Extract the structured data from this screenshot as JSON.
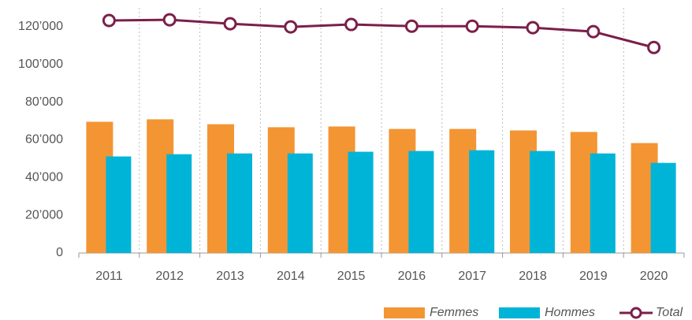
{
  "chart_data": {
    "type": "bar",
    "categories": [
      "2011",
      "2012",
      "2013",
      "2014",
      "2015",
      "2016",
      "2017",
      "2018",
      "2019",
      "2020"
    ],
    "series": [
      {
        "name": "Femmes",
        "type": "bar",
        "color": "#f39533",
        "values": [
          69600,
          70900,
          68300,
          66700,
          67100,
          65800,
          65800,
          65000,
          64200,
          58300
        ]
      },
      {
        "name": "Hommes",
        "type": "bar",
        "color": "#00b4d8",
        "values": [
          51200,
          52400,
          52800,
          52800,
          53700,
          54100,
          54500,
          54100,
          52800,
          47800
        ]
      },
      {
        "name": "Total",
        "type": "line",
        "color": "#7b1f4b",
        "values": [
          123300,
          123700,
          121600,
          119900,
          121200,
          120300,
          120300,
          119500,
          117400,
          109000
        ]
      }
    ],
    "ylim": [
      0,
      130000
    ],
    "yticks": [
      0,
      {
        "value": 20000,
        "label": "20’000"
      },
      {
        "value": 40000,
        "label": "40’000"
      },
      {
        "value": 60000,
        "label": "60’000"
      },
      {
        "value": 80000,
        "label": "80’000"
      },
      {
        "value": 100000,
        "label": "100’000"
      },
      {
        "value": 120000,
        "label": "120’000"
      }
    ],
    "legend": "bottom-right"
  }
}
